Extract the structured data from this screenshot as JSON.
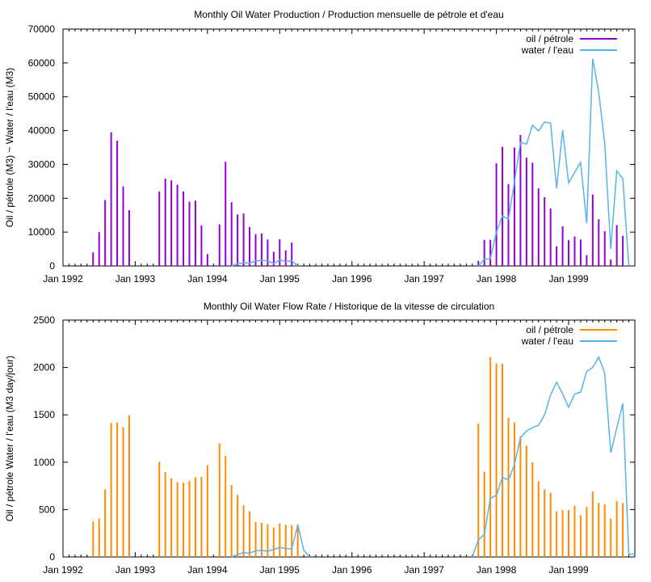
{
  "chart_data": [
    {
      "type": "bar",
      "title": "Monthly Oil  Water Production / Production mensuelle de pétrole et d'eau",
      "xlabel": "",
      "ylabel": "Oil / pétrole (M3) ~  Water / l'eau (M3)",
      "ylim": [
        0,
        70000
      ],
      "yticks": [
        0,
        10000,
        20000,
        30000,
        40000,
        50000,
        60000,
        70000
      ],
      "ytick_labels": [
        "0",
        "10000",
        "20000",
        "30000",
        "40000",
        "50000",
        "60000",
        "70000"
      ],
      "xlim": [
        "1992-01",
        "1999-12"
      ],
      "xtick_labels": [
        "Jan 1992",
        "Jan 1993",
        "Jan 1994",
        "Jan 1995",
        "Jan 1996",
        "Jan 1997",
        "Jan 1998",
        "Jan 1999"
      ],
      "grid": false,
      "legend_position": "top-right",
      "series": [
        {
          "name": "oil / pétrole",
          "kind": "bar",
          "color": "#9400d3",
          "points": [
            [
              "1992-06",
              4000
            ],
            [
              "1992-07",
              10000
            ],
            [
              "1992-08",
              19500
            ],
            [
              "1992-09",
              39500
            ],
            [
              "1992-10",
              37000
            ],
            [
              "1992-11",
              23500
            ],
            [
              "1992-12",
              16500
            ],
            [
              "1993-05",
              22000
            ],
            [
              "1993-06",
              25800
            ],
            [
              "1993-07",
              25300
            ],
            [
              "1993-08",
              24000
            ],
            [
              "1993-09",
              22000
            ],
            [
              "1993-10",
              19000
            ],
            [
              "1993-11",
              19300
            ],
            [
              "1993-12",
              12000
            ],
            [
              "1994-01",
              3500
            ],
            [
              "1994-03",
              12300
            ],
            [
              "1994-04",
              30800
            ],
            [
              "1994-05",
              18800
            ],
            [
              "1994-06",
              15200
            ],
            [
              "1994-07",
              15500
            ],
            [
              "1994-08",
              11500
            ],
            [
              "1994-09",
              9400
            ],
            [
              "1994-10",
              9600
            ],
            [
              "1994-11",
              7800
            ],
            [
              "1994-12",
              4200
            ],
            [
              "1995-01",
              7900
            ],
            [
              "1995-02",
              4600
            ],
            [
              "1995-03",
              6900
            ],
            [
              "1997-10",
              1500
            ],
            [
              "1997-11",
              7700
            ],
            [
              "1997-12",
              7700
            ],
            [
              "1998-01",
              30300
            ],
            [
              "1998-02",
              35200
            ],
            [
              "1998-03",
              24200
            ],
            [
              "1998-04",
              35000
            ],
            [
              "1998-05",
              38700
            ],
            [
              "1998-06",
              32000
            ],
            [
              "1998-07",
              30500
            ],
            [
              "1998-08",
              22900
            ],
            [
              "1998-09",
              20300
            ],
            [
              "1998-10",
              17000
            ],
            [
              "1998-11",
              5800
            ],
            [
              "1998-12",
              11700
            ],
            [
              "1999-01",
              7600
            ],
            [
              "1999-02",
              8700
            ],
            [
              "1999-03",
              7800
            ],
            [
              "1999-04",
              3200
            ],
            [
              "1999-05",
              21100
            ],
            [
              "1999-06",
              13800
            ],
            [
              "1999-07",
              10300
            ],
            [
              "1999-08",
              1900
            ],
            [
              "1999-09",
              12100
            ],
            [
              "1999-10",
              8900
            ]
          ]
        },
        {
          "name": "water / l'eau",
          "kind": "line",
          "color": "#56b4e9",
          "points": [
            [
              "1994-05",
              0
            ],
            [
              "1994-06",
              600
            ],
            [
              "1994-07",
              900
            ],
            [
              "1994-08",
              900
            ],
            [
              "1994-09",
              1400
            ],
            [
              "1994-10",
              1700
            ],
            [
              "1994-11",
              1500
            ],
            [
              "1994-12",
              700
            ],
            [
              "1995-01",
              1800
            ],
            [
              "1995-02",
              1300
            ],
            [
              "1995-03",
              1500
            ],
            [
              "1995-04",
              0
            ],
            [
              "1997-10",
              0
            ],
            [
              "1997-11",
              2000
            ],
            [
              "1997-12",
              2100
            ],
            [
              "1998-01",
              10000
            ],
            [
              "1998-02",
              14800
            ],
            [
              "1998-03",
              13800
            ],
            [
              "1998-04",
              24800
            ],
            [
              "1998-05",
              36500
            ],
            [
              "1998-06",
              36000
            ],
            [
              "1998-07",
              41600
            ],
            [
              "1998-08",
              39900
            ],
            [
              "1998-09",
              42500
            ],
            [
              "1998-10",
              42200
            ],
            [
              "1998-11",
              22900
            ],
            [
              "1998-12",
              40200
            ],
            [
              "1999-01",
              24500
            ],
            [
              "1999-02",
              27700
            ],
            [
              "1999-03",
              30600
            ],
            [
              "1999-04",
              12600
            ],
            [
              "1999-05",
              61200
            ],
            [
              "1999-06",
              51300
            ],
            [
              "1999-07",
              36300
            ],
            [
              "1999-08",
              5000
            ],
            [
              "1999-09",
              28100
            ],
            [
              "1999-10",
              25800
            ],
            [
              "1999-11",
              0
            ]
          ]
        }
      ]
    },
    {
      "type": "bar",
      "title": "Monthly Oil  Water Flow Rate / Historique de la vitesse de circulation",
      "xlabel": "",
      "ylabel": "Oil / pétrole  Water / l'eau (M3 day/jour)",
      "ylim": [
        0,
        2500
      ],
      "yticks": [
        0,
        500,
        1000,
        1500,
        2000,
        2500
      ],
      "ytick_labels": [
        "0",
        "500",
        "1000",
        "1500",
        "2000",
        "2500"
      ],
      "xlim": [
        "1992-01",
        "1999-12"
      ],
      "xtick_labels": [
        "Jan 1992",
        "Jan 1993",
        "Jan 1994",
        "Jan 1995",
        "Jan 1996",
        "Jan 1997",
        "Jan 1998",
        "Jan 1999"
      ],
      "grid": false,
      "legend_position": "top-right",
      "series": [
        {
          "name": "oil / pétrole",
          "kind": "bar",
          "color": "#ff8c00",
          "points": [
            [
              "1992-06",
              375
            ],
            [
              "1992-07",
              405
            ],
            [
              "1992-08",
              715
            ],
            [
              "1992-09",
              1415
            ],
            [
              "1992-10",
              1420
            ],
            [
              "1992-11",
              1370
            ],
            [
              "1992-12",
              1495
            ],
            [
              "1993-05",
              1005
            ],
            [
              "1993-06",
              895
            ],
            [
              "1993-07",
              830
            ],
            [
              "1993-08",
              790
            ],
            [
              "1993-09",
              785
            ],
            [
              "1993-10",
              805
            ],
            [
              "1993-11",
              840
            ],
            [
              "1993-12",
              845
            ],
            [
              "1994-01",
              970
            ],
            [
              "1994-03",
              1200
            ],
            [
              "1994-04",
              1065
            ],
            [
              "1994-05",
              760
            ],
            [
              "1994-06",
              655
            ],
            [
              "1994-07",
              545
            ],
            [
              "1994-08",
              480
            ],
            [
              "1994-09",
              370
            ],
            [
              "1994-10",
              360
            ],
            [
              "1994-11",
              345
            ],
            [
              "1994-12",
              310
            ],
            [
              "1995-01",
              355
            ],
            [
              "1995-02",
              340
            ],
            [
              "1995-03",
              335
            ],
            [
              "1995-04",
              345
            ],
            [
              "1997-10",
              1410
            ],
            [
              "1997-11",
              900
            ],
            [
              "1997-12",
              2110
            ],
            [
              "1998-01",
              2040
            ],
            [
              "1998-02",
              2040
            ],
            [
              "1998-03",
              1470
            ],
            [
              "1998-04",
              1420
            ],
            [
              "1998-05",
              1275
            ],
            [
              "1998-06",
              1175
            ],
            [
              "1998-07",
              1000
            ],
            [
              "1998-08",
              800
            ],
            [
              "1998-09",
              715
            ],
            [
              "1998-10",
              675
            ],
            [
              "1998-11",
              480
            ],
            [
              "1998-12",
              495
            ],
            [
              "1999-01",
              495
            ],
            [
              "1999-02",
              540
            ],
            [
              "1999-03",
              440
            ],
            [
              "1999-04",
              530
            ],
            [
              "1999-05",
              690
            ],
            [
              "1999-06",
              570
            ],
            [
              "1999-07",
              555
            ],
            [
              "1999-08",
              405
            ],
            [
              "1999-09",
              590
            ],
            [
              "1999-10",
              570
            ]
          ]
        },
        {
          "name": "water / l'eau",
          "kind": "line",
          "color": "#56b4e9",
          "points": [
            [
              "1994-05",
              0
            ],
            [
              "1994-06",
              25
            ],
            [
              "1994-07",
              45
            ],
            [
              "1994-08",
              40
            ],
            [
              "1994-09",
              65
            ],
            [
              "1994-10",
              70
            ],
            [
              "1994-11",
              60
            ],
            [
              "1994-12",
              80
            ],
            [
              "1995-01",
              100
            ],
            [
              "1995-02",
              90
            ],
            [
              "1995-03",
              85
            ],
            [
              "1995-04",
              340
            ],
            [
              "1995-05",
              70
            ],
            [
              "1995-06",
              0
            ],
            [
              "1997-09",
              0
            ],
            [
              "1997-10",
              180
            ],
            [
              "1997-11",
              240
            ],
            [
              "1997-12",
              620
            ],
            [
              "1998-01",
              650
            ],
            [
              "1998-02",
              840
            ],
            [
              "1998-03",
              810
            ],
            [
              "1998-04",
              975
            ],
            [
              "1998-05",
              1255
            ],
            [
              "1998-06",
              1330
            ],
            [
              "1998-07",
              1365
            ],
            [
              "1998-08",
              1390
            ],
            [
              "1998-09",
              1500
            ],
            [
              "1998-10",
              1710
            ],
            [
              "1998-11",
              1845
            ],
            [
              "1998-12",
              1720
            ],
            [
              "1999-01",
              1580
            ],
            [
              "1999-02",
              1720
            ],
            [
              "1999-03",
              1740
            ],
            [
              "1999-04",
              1960
            ],
            [
              "1999-05",
              2000
            ],
            [
              "1999-06",
              2110
            ],
            [
              "1999-07",
              1940
            ],
            [
              "1999-08",
              1100
            ],
            [
              "1999-09",
              1360
            ],
            [
              "1999-10",
              1620
            ],
            [
              "1999-11",
              30
            ],
            [
              "1999-12",
              30
            ]
          ]
        }
      ]
    }
  ]
}
